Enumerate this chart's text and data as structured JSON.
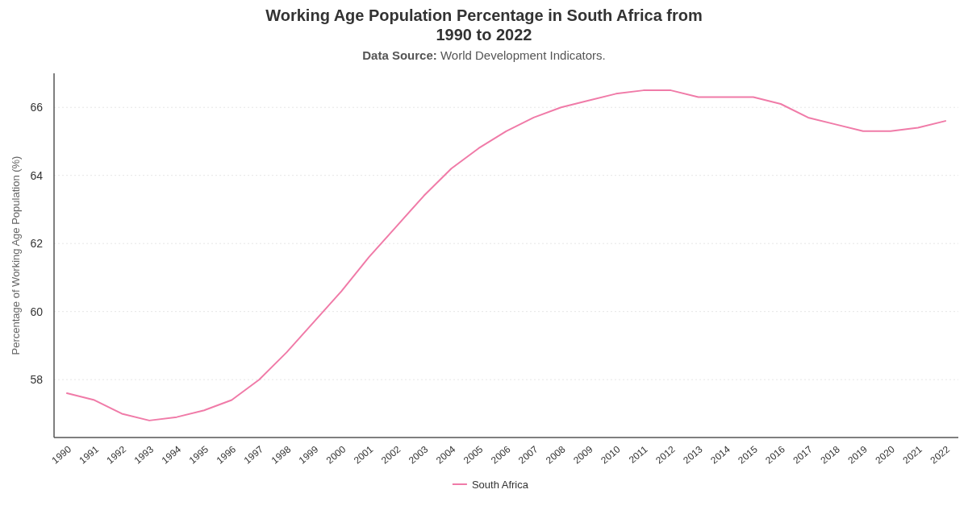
{
  "chart_data": {
    "type": "line",
    "title": "Working Age Population Percentage in South Africa from 1990 to 2022",
    "subtitle": "Data Source: World Development Indicators.",
    "ylabel": "Percentage of Working Age Population (%)",
    "categories": [
      "1990",
      "1991",
      "1992",
      "1993",
      "1994",
      "1995",
      "1996",
      "1997",
      "1998",
      "1999",
      "2000",
      "2001",
      "2002",
      "2003",
      "2004",
      "2005",
      "2006",
      "2007",
      "2008",
      "2009",
      "2010",
      "2011",
      "2012",
      "2013",
      "2014",
      "2015",
      "2016",
      "2017",
      "2018",
      "2019",
      "2020",
      "2021",
      "2022"
    ],
    "series": [
      {
        "name": "South Africa",
        "color": "#f07ba8",
        "values": [
          57.6,
          57.4,
          57.0,
          56.8,
          56.9,
          57.1,
          57.4,
          58.0,
          58.8,
          59.7,
          60.6,
          61.6,
          62.5,
          63.4,
          64.2,
          64.8,
          65.3,
          65.7,
          66.0,
          66.2,
          66.4,
          66.5,
          66.5,
          66.3,
          66.3,
          66.3,
          66.1,
          65.7,
          65.5,
          65.3,
          65.3,
          65.4,
          65.6
        ]
      }
    ],
    "ylim": [
      56.3,
      67
    ],
    "yticks": [
      58,
      60,
      62,
      64,
      66
    ],
    "grid": "y",
    "legend": "bottom"
  }
}
